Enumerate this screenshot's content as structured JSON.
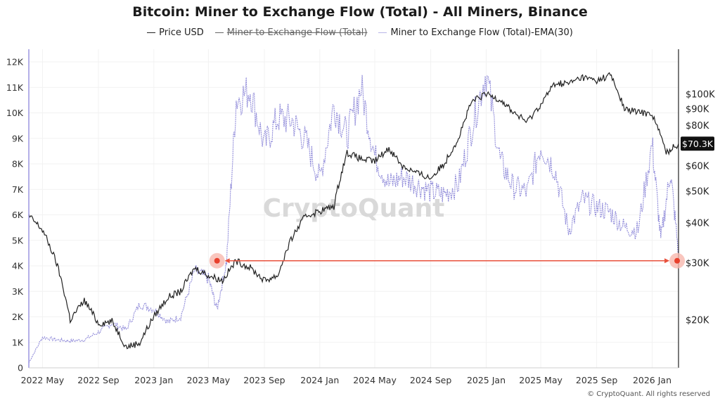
{
  "title": "Bitcoin: Miner to Exchange Flow (Total) - All Miners, Binance",
  "legend": [
    {
      "label": "Price USD",
      "color": "#222222",
      "enabled": true
    },
    {
      "label": "Miner to Exchange Flow (Total)",
      "color": "#222222",
      "enabled": false
    },
    {
      "label": "Miner to Exchange Flow (Total)-EMA(30)",
      "color": "#b8b5e8",
      "enabled": true
    }
  ],
  "watermark": "CryptoQuant",
  "copyright": "© CryptoQuant. All rights reserved",
  "chart_data": {
    "type": "line",
    "x_ticks": [
      "2022 May",
      "2022 Sep",
      "2023 Jan",
      "2023 May",
      "2023 Sep",
      "2024 Jan",
      "2024 May",
      "2024 Sep",
      "2025 Jan",
      "2025 May",
      "2025 Sep",
      "2026 Jan"
    ],
    "xlim": [
      "2022-04-01",
      "2026-02-28"
    ],
    "y_left": {
      "ticks": [
        "0",
        "1K",
        "2K",
        "3K",
        "4K",
        "5K",
        "6K",
        "7K",
        "8K",
        "9K",
        "10K",
        "11K",
        "12K"
      ],
      "ylim": [
        0,
        12500
      ]
    },
    "y_right": {
      "scale": "log",
      "ticks": [
        "$20K",
        "$30K",
        "$40K",
        "$50K",
        "$60K",
        "$80K",
        "$90K",
        "$100K"
      ],
      "current_price_label": "$70.3K",
      "current_price": 70300
    },
    "series": [
      {
        "name": "Miner to Exchange Flow (Total)-EMA(30)",
        "axis": "left",
        "color": "#8f8ad9",
        "x": [
          "2022-04-01",
          "2022-05-01",
          "2022-06-01",
          "2022-07-01",
          "2022-08-01",
          "2022-09-01",
          "2022-10-01",
          "2022-11-01",
          "2022-12-01",
          "2023-01-01",
          "2023-02-01",
          "2023-03-01",
          "2023-04-01",
          "2023-05-01",
          "2023-05-20",
          "2023-06-10",
          "2023-07-01",
          "2023-08-01",
          "2023-09-01",
          "2023-10-01",
          "2023-11-01",
          "2023-12-01",
          "2024-01-01",
          "2024-02-01",
          "2024-03-01",
          "2024-04-01",
          "2024-05-01",
          "2024-06-01",
          "2024-07-01",
          "2024-08-01",
          "2024-09-01",
          "2024-10-01",
          "2024-11-01",
          "2024-12-01",
          "2025-01-01",
          "2025-02-01",
          "2025-03-01",
          "2025-04-01",
          "2025-05-01",
          "2025-06-01",
          "2025-07-01",
          "2025-08-01",
          "2025-09-01",
          "2025-10-01",
          "2025-11-01",
          "2025-12-01",
          "2026-01-01",
          "2026-01-20",
          "2026-02-10",
          "2026-02-28"
        ],
        "values": [
          200,
          1200,
          1100,
          1050,
          1100,
          1400,
          1750,
          1500,
          2500,
          2300,
          1800,
          2000,
          3800,
          3500,
          2300,
          4200,
          10500,
          10900,
          8700,
          9800,
          9700,
          8900,
          7400,
          10300,
          9100,
          11000,
          8300,
          7200,
          7500,
          7200,
          6900,
          6800,
          7200,
          9500,
          11600,
          8100,
          7100,
          6900,
          8700,
          7800,
          5400,
          6600,
          6300,
          6100,
          5500,
          5400,
          8800,
          5000,
          7700,
          4500
        ]
      },
      {
        "name": "Price USD",
        "axis": "right",
        "color": "#222222",
        "x": [
          "2022-04-01",
          "2022-05-01",
          "2022-06-01",
          "2022-07-01",
          "2022-08-01",
          "2022-09-01",
          "2022-10-01",
          "2022-11-01",
          "2022-12-01",
          "2023-01-01",
          "2023-02-01",
          "2023-03-01",
          "2023-04-01",
          "2023-05-01",
          "2023-06-01",
          "2023-07-01",
          "2023-08-01",
          "2023-09-01",
          "2023-10-01",
          "2023-11-01",
          "2023-12-01",
          "2024-01-01",
          "2024-02-01",
          "2024-03-01",
          "2024-04-01",
          "2024-05-01",
          "2024-06-01",
          "2024-07-01",
          "2024-08-01",
          "2024-09-01",
          "2024-10-01",
          "2024-11-01",
          "2024-12-01",
          "2025-01-01",
          "2025-02-01",
          "2025-03-01",
          "2025-04-01",
          "2025-05-01",
          "2025-06-01",
          "2025-07-01",
          "2025-08-01",
          "2025-09-01",
          "2025-10-01",
          "2025-11-01",
          "2025-12-01",
          "2026-01-01",
          "2026-02-01",
          "2026-02-28"
        ],
        "values": [
          42000,
          38000,
          30000,
          20000,
          23000,
          19500,
          19800,
          16500,
          17000,
          20500,
          23500,
          24500,
          29000,
          27500,
          26500,
          30500,
          29000,
          26500,
          27500,
          36000,
          42000,
          43500,
          45000,
          66000,
          63000,
          62000,
          68000,
          60000,
          57000,
          55000,
          61000,
          73000,
          95000,
          100000,
          96500,
          88000,
          82000,
          93000,
          108000,
          108000,
          113000,
          110000,
          115000,
          90000,
          88000,
          87000,
          66000,
          70300
        ]
      }
    ],
    "annotations": [
      {
        "type": "horizontal-arrow",
        "from_x": "2023-05-20",
        "to_x": "2026-02-25",
        "y": 4200,
        "axis": "left",
        "color": "#e8503c"
      }
    ]
  }
}
